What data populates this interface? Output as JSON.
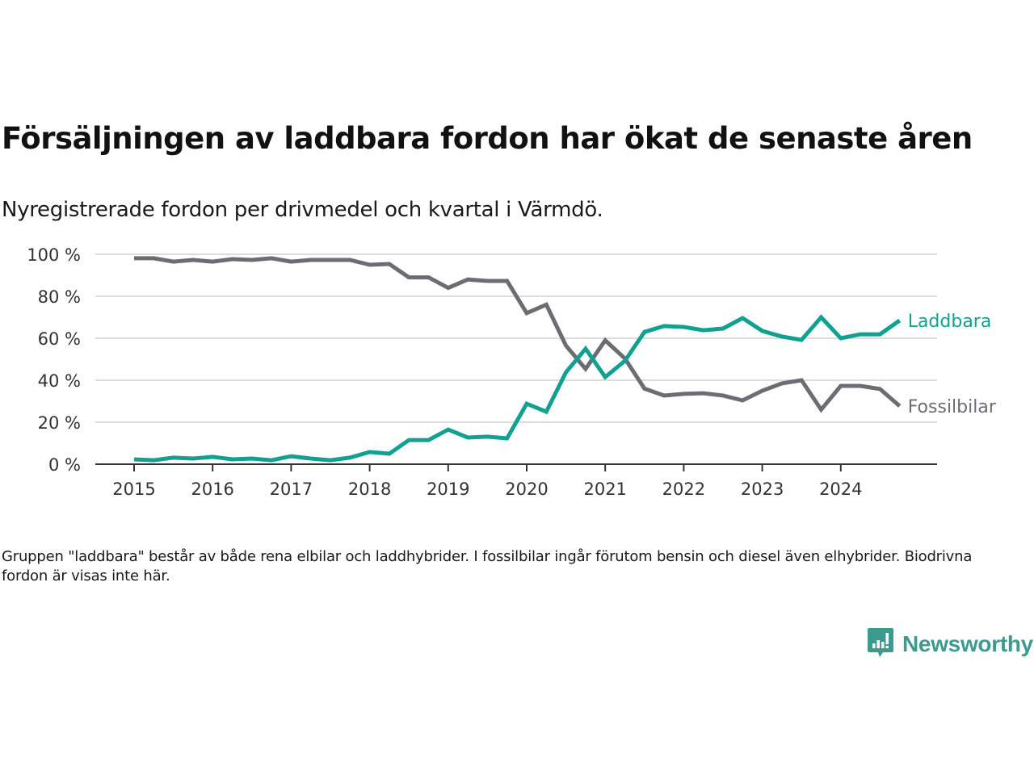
{
  "header": {
    "title": "Försäljningen av laddbara fordon har ökat de senaste åren",
    "subtitle": "Nyregistrerade fordon per drivmedel och kvartal i Värmdö."
  },
  "footer": {
    "note": "Gruppen \"laddbara\" består av både rena elbilar och laddhybrider. I fossilbilar ingår förutom bensin och diesel även elhybrider. Biodrivna fordon är visas inte här.",
    "brand": "Newsworthy",
    "brand_icon": "chart-bubble-icon"
  },
  "colors": {
    "laddbara": "#12a190",
    "fossilbilar": "#6d6c72",
    "grid": "#dcdcdc",
    "axis": "#333333",
    "brand": "#3d9a8f"
  },
  "chart_data": {
    "type": "line",
    "title": "Försäljningen av laddbara fordon har ökat de senaste åren",
    "subtitle": "Nyregistrerade fordon per drivmedel och kvartal i Värmdö.",
    "xlabel": "",
    "ylabel": "",
    "ylim": [
      0,
      100
    ],
    "yticks": [
      0,
      20,
      40,
      60,
      80,
      100
    ],
    "ytick_labels": [
      "0 %",
      "20 %",
      "40 %",
      "60 %",
      "80 %",
      "100 %"
    ],
    "xticks": [
      "2015",
      "2016",
      "2017",
      "2018",
      "2019",
      "2020",
      "2021",
      "2022",
      "2023",
      "2024"
    ],
    "x_start_year": 2015,
    "periods_per_year": 4,
    "grid": true,
    "legend": "inline-right",
    "series": [
      {
        "name": "Laddbara",
        "color": "#12a190",
        "values": [
          2.3,
          1.9,
          3.1,
          2.7,
          3.5,
          2.3,
          2.7,
          1.9,
          3.8,
          2.7,
          1.9,
          3.1,
          5.8,
          5.0,
          11.5,
          11.5,
          16.5,
          12.7,
          13.1,
          12.3,
          28.8,
          25.0,
          43.8,
          55.0,
          41.5,
          49.2,
          63.0,
          65.8,
          65.4,
          63.8,
          64.6,
          69.6,
          63.5,
          60.8,
          59.2,
          70.0,
          60.0,
          61.9,
          61.9,
          68.5
        ]
      },
      {
        "name": "Fossilbilar",
        "color": "#6d6c72",
        "values": [
          98.1,
          98.1,
          96.5,
          97.3,
          96.5,
          97.7,
          97.3,
          98.1,
          96.5,
          97.3,
          97.3,
          97.3,
          95.0,
          95.4,
          89.0,
          89.0,
          84.0,
          88.0,
          87.3,
          87.3,
          72.0,
          76.0,
          56.5,
          45.4,
          59.0,
          50.4,
          36.0,
          32.7,
          33.5,
          33.8,
          32.7,
          30.4,
          35.0,
          38.5,
          40.0,
          26.0,
          37.3,
          37.3,
          35.8,
          27.7
        ]
      }
    ]
  }
}
